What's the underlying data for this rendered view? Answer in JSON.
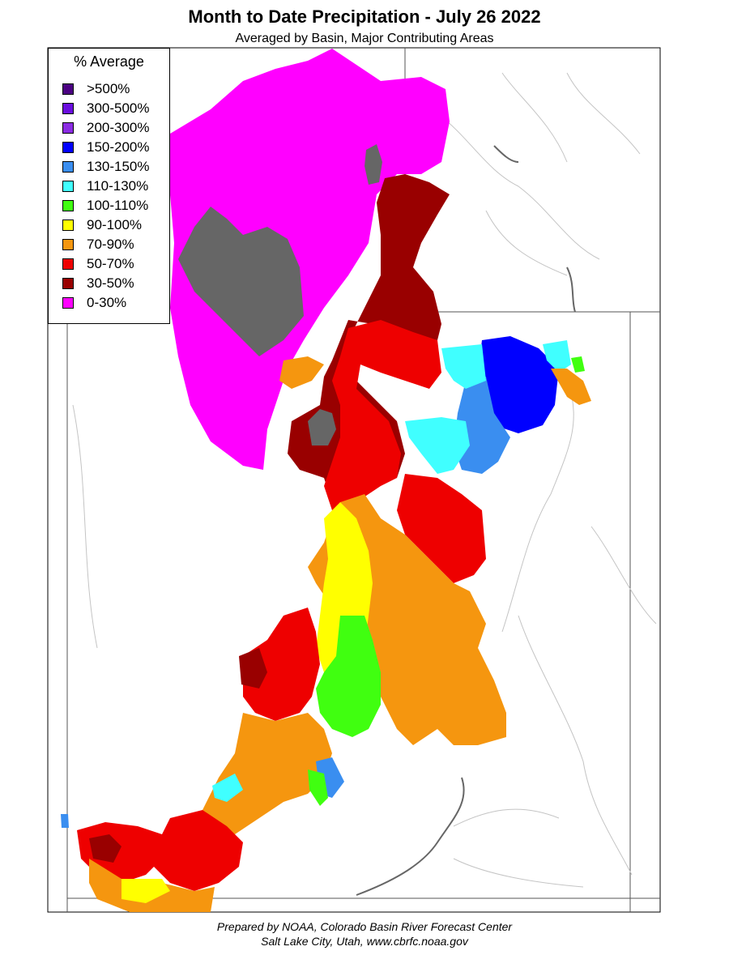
{
  "title": "Month to Date Precipitation - July 26 2022",
  "subtitle": "Averaged by Basin, Major Contributing Areas",
  "legend": {
    "title": "% Average",
    "items": [
      {
        "label": ">500%",
        "color": "#4b0082"
      },
      {
        "label": "300-500%",
        "color": "#6a0dde"
      },
      {
        "label": "200-300%",
        "color": "#8a2be2"
      },
      {
        "label": "150-200%",
        "color": "#0000ff"
      },
      {
        "label": "130-150%",
        "color": "#3a8ef0"
      },
      {
        "label": "110-130%",
        "color": "#40ffff"
      },
      {
        "label": "100-110%",
        "color": "#40ff10"
      },
      {
        "label": "90-100%",
        "color": "#ffff00"
      },
      {
        "label": "70-90%",
        "color": "#f5960f"
      },
      {
        "label": "50-70%",
        "color": "#ee0000"
      },
      {
        "label": "30-50%",
        "color": "#990000"
      },
      {
        "label": "0-30%",
        "color": "#ff00ff"
      }
    ]
  },
  "no_data_color": "#666666",
  "credit": {
    "line1": "Prepared by NOAA, Colorado Basin River Forecast Center",
    "line2": "Salt Lake City, Utah, www.cbrfc.noaa.gov"
  }
}
